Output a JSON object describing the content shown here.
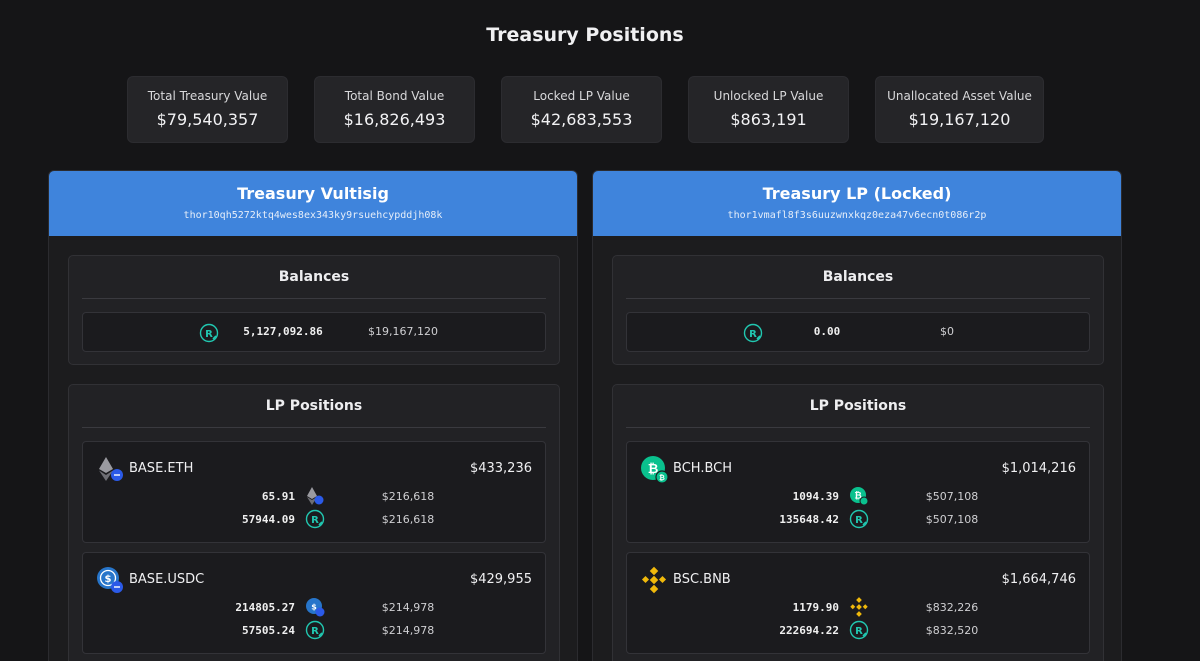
{
  "page_title": "Treasury Positions",
  "stats": [
    {
      "label": "Total Treasury Value",
      "value": "$79,540,357"
    },
    {
      "label": "Total Bond Value",
      "value": "$16,826,493"
    },
    {
      "label": "Locked LP Value",
      "value": "$42,683,553"
    },
    {
      "label": "Unlocked LP Value",
      "value": "$863,191"
    },
    {
      "label": "Unallocated Asset Value",
      "value": "$19,167,120"
    }
  ],
  "panels": [
    {
      "title": "Treasury Vultisig",
      "address": "thor10qh5272ktq4wes8ex343ky9rsuehcypddjh08k",
      "balances_title": "Balances",
      "balance": {
        "icon": "rune-icon",
        "amount": "5,127,092.86",
        "usd": "$19,167,120"
      },
      "lp_title": "LP Positions",
      "lp": [
        {
          "name": "BASE.ETH",
          "icon": "eth-base-icon",
          "total": "$433,236",
          "lines": [
            {
              "amount": "65.91",
              "icon": "eth-base-icon",
              "usd": "$216,618"
            },
            {
              "amount": "57944.09",
              "icon": "rune-icon",
              "usd": "$216,618"
            }
          ]
        },
        {
          "name": "BASE.USDC",
          "icon": "usdc-base-icon",
          "total": "$429,955",
          "lines": [
            {
              "amount": "214805.27",
              "icon": "usdc-base-icon",
              "usd": "$214,978"
            },
            {
              "amount": "57505.24",
              "icon": "rune-icon",
              "usd": "$214,978"
            }
          ]
        }
      ]
    },
    {
      "title": "Treasury LP (Locked)",
      "address": "thor1vmafl8f3s6uuzwnxkqz0eza47v6ecn0t086r2p",
      "balances_title": "Balances",
      "balance": {
        "icon": "rune-icon",
        "amount": "0.00",
        "usd": "$0"
      },
      "lp_title": "LP Positions",
      "lp": [
        {
          "name": "BCH.BCH",
          "icon": "bch-icon",
          "total": "$1,014,216",
          "lines": [
            {
              "amount": "1094.39",
              "icon": "bch-icon",
              "usd": "$507,108"
            },
            {
              "amount": "135648.42",
              "icon": "rune-icon",
              "usd": "$507,108"
            }
          ]
        },
        {
          "name": "BSC.BNB",
          "icon": "bnb-icon",
          "total": "$1,664,746",
          "lines": [
            {
              "amount": "1179.90",
              "icon": "bnb-icon",
              "usd": "$832,226"
            },
            {
              "amount": "222694.22",
              "icon": "rune-icon",
              "usd": "$832,520"
            }
          ]
        }
      ]
    }
  ],
  "colors": {
    "accent": "#3f84dc",
    "rune": "#21c7b0",
    "bch": "#0ac18e",
    "bnb": "#f0b90b",
    "usdc": "#2775ca"
  }
}
